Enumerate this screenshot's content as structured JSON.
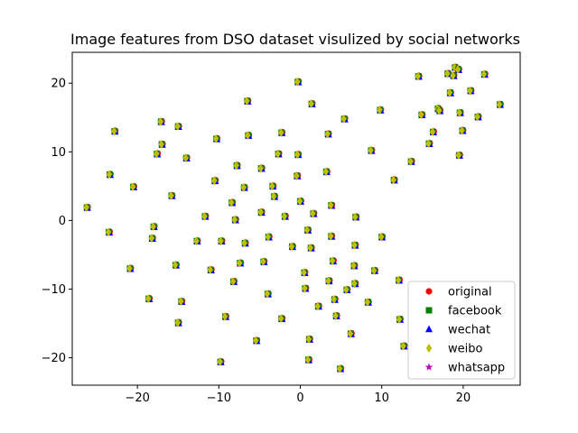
{
  "chart_data": {
    "type": "scatter",
    "title": "Image features from DSO dataset visulized by social networks",
    "xlabel": "",
    "ylabel": "",
    "xlim": [
      -28,
      27
    ],
    "ylim": [
      -24,
      24.5
    ],
    "xticks": [
      -20,
      -10,
      0,
      10,
      20
    ],
    "yticks": [
      -20,
      -10,
      0,
      10,
      20
    ],
    "grid": false,
    "legend_position": "lower-right",
    "series": [
      {
        "name": "original",
        "marker": "circle",
        "color": "#ff0000"
      },
      {
        "name": "facebook",
        "marker": "square",
        "color": "#008000"
      },
      {
        "name": "wechat",
        "marker": "triangle",
        "color": "#0000ff"
      },
      {
        "name": "weibo",
        "marker": "diamond",
        "color": "#bfbf00"
      },
      {
        "name": "whatsapp",
        "marker": "star",
        "color": "#bf00bf"
      }
    ],
    "points": [
      [
        -26.2,
        1.9
      ],
      [
        -23.5,
        -1.7
      ],
      [
        -23.4,
        6.7
      ],
      [
        -22.8,
        13.0
      ],
      [
        -20.9,
        -7.0
      ],
      [
        -20.5,
        4.9
      ],
      [
        -18.6,
        -11.4
      ],
      [
        -18.2,
        -2.6
      ],
      [
        -18.0,
        -0.9
      ],
      [
        -17.6,
        9.7
      ],
      [
        -17.1,
        14.4
      ],
      [
        -17.0,
        11.1
      ],
      [
        -15.8,
        3.6
      ],
      [
        -15.3,
        -6.5
      ],
      [
        -15.0,
        -14.9
      ],
      [
        -15.0,
        13.7
      ],
      [
        -14.6,
        -11.8
      ],
      [
        -14.0,
        9.1
      ],
      [
        -12.7,
        -3.0
      ],
      [
        -11.7,
        0.6
      ],
      [
        -11.0,
        -7.2
      ],
      [
        -10.5,
        5.8
      ],
      [
        -10.3,
        11.9
      ],
      [
        -9.8,
        -20.6
      ],
      [
        -9.7,
        -3.0
      ],
      [
        -9.2,
        -14.0
      ],
      [
        -8.4,
        2.6
      ],
      [
        -8.2,
        -8.9
      ],
      [
        -8.0,
        0.1
      ],
      [
        -7.8,
        8.0
      ],
      [
        -7.4,
        -6.2
      ],
      [
        -6.9,
        4.8
      ],
      [
        -6.8,
        -3.3
      ],
      [
        -6.4,
        12.4
      ],
      [
        -6.5,
        17.4
      ],
      [
        -5.4,
        -17.5
      ],
      [
        -4.8,
        1.2
      ],
      [
        -4.8,
        7.6
      ],
      [
        -4.5,
        -6.0
      ],
      [
        -4.0,
        -10.7
      ],
      [
        -3.9,
        -2.4
      ],
      [
        -3.4,
        5.0
      ],
      [
        -3.2,
        3.5
      ],
      [
        -2.7,
        9.7
      ],
      [
        -2.3,
        12.8
      ],
      [
        -2.3,
        -14.3
      ],
      [
        -1.9,
        0.6
      ],
      [
        -1.0,
        -3.8
      ],
      [
        -0.3,
        20.2
      ],
      [
        -0.3,
        9.6
      ],
      [
        -0.4,
        6.5
      ],
      [
        0.0,
        2.8
      ],
      [
        0.5,
        -7.6
      ],
      [
        0.6,
        -9.9
      ],
      [
        0.9,
        -1.4
      ],
      [
        1.0,
        -20.3
      ],
      [
        1.1,
        -17.3
      ],
      [
        1.3,
        -4.0
      ],
      [
        1.4,
        17.0
      ],
      [
        1.6,
        1.0
      ],
      [
        2.2,
        -12.5
      ],
      [
        3.2,
        7.1
      ],
      [
        3.4,
        12.6
      ],
      [
        3.5,
        -8.8
      ],
      [
        3.8,
        2.2
      ],
      [
        3.8,
        -2.3
      ],
      [
        4.0,
        -5.9
      ],
      [
        4.2,
        -11.5
      ],
      [
        4.4,
        -13.9
      ],
      [
        4.9,
        -21.6
      ],
      [
        5.4,
        14.8
      ],
      [
        5.7,
        -10.1
      ],
      [
        6.2,
        -16.5
      ],
      [
        6.6,
        -6.6
      ],
      [
        6.7,
        -9.2
      ],
      [
        6.7,
        -3.6
      ],
      [
        6.8,
        0.5
      ],
      [
        8.3,
        -11.9
      ],
      [
        8.7,
        10.2
      ],
      [
        9.1,
        -7.3
      ],
      [
        9.8,
        16.1
      ],
      [
        10.0,
        -2.4
      ],
      [
        11.5,
        5.9
      ],
      [
        12.1,
        -8.7
      ],
      [
        12.2,
        -14.4
      ],
      [
        12.7,
        -18.3
      ],
      [
        13.6,
        8.6
      ],
      [
        14.5,
        21.0
      ],
      [
        14.9,
        15.4
      ],
      [
        15.8,
        11.2
      ],
      [
        16.3,
        12.9
      ],
      [
        16.9,
        16.3
      ],
      [
        17.1,
        16.0
      ],
      [
        18.1,
        21.4
      ],
      [
        18.4,
        18.6
      ],
      [
        18.8,
        21.1
      ],
      [
        19.0,
        22.3
      ],
      [
        19.4,
        22.0
      ],
      [
        19.5,
        9.5
      ],
      [
        19.6,
        15.7
      ],
      [
        19.9,
        13.1
      ],
      [
        20.9,
        18.9
      ],
      [
        21.8,
        15.1
      ],
      [
        22.6,
        21.3
      ],
      [
        24.5,
        16.9
      ]
    ]
  }
}
